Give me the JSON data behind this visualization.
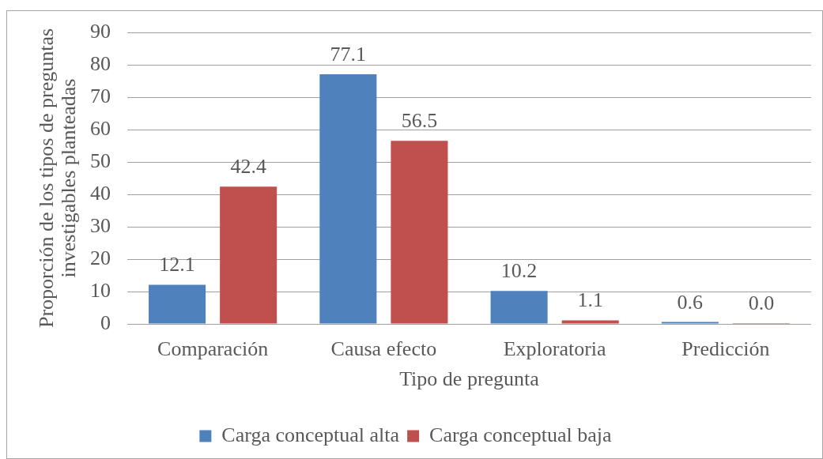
{
  "chart_data": {
    "type": "bar",
    "xlabel": "Tipo de pregunta",
    "ylabel": "Proporción de los tipos de preguntas investigables planteadas",
    "categories": [
      "Comparación",
      "Causa efecto",
      "Exploratoria",
      "Predicción"
    ],
    "series": [
      {
        "name": "Carga conceptual alta",
        "color": "#4f81bd",
        "values": [
          12.1,
          77.1,
          10.2,
          0.6
        ],
        "value_labels": [
          "12.1",
          "77.1",
          "10.2",
          "0.6"
        ]
      },
      {
        "name": "Carga conceptual baja",
        "color": "#c0504d",
        "values": [
          42.4,
          56.5,
          1.1,
          0
        ],
        "value_labels": [
          "42.4",
          "56.5",
          "1.1",
          "0.0"
        ]
      }
    ],
    "ylim": [
      0,
      90
    ],
    "yticks": [
      0,
      10,
      20,
      30,
      40,
      50,
      60,
      70,
      80,
      90
    ],
    "grid": "y",
    "legend": "bottom"
  }
}
